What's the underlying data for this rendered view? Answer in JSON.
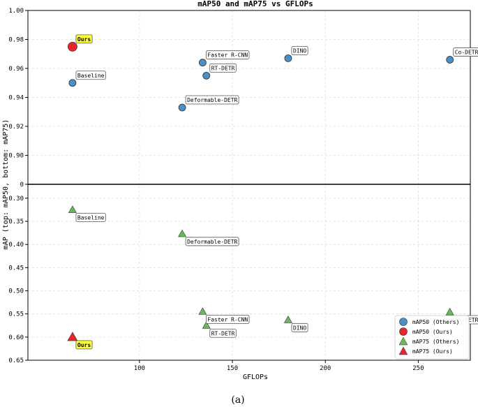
{
  "chart_data": {
    "type": "scatter",
    "title": "mAP50 and mAP75 vs GFLOPs",
    "xlabel": "GFLOPs",
    "ylabel": "mAP (top: mAP50, bottom: mAP75)",
    "caption": "(a)",
    "xlim": [
      40,
      278
    ],
    "x_ticks": [
      "100",
      "150",
      "200",
      "250"
    ],
    "top_panel": {
      "ylim": [
        0.88,
        1.0
      ],
      "y_ticks": [
        "0.90",
        "0.92",
        "0.94",
        "0.96",
        "0.98",
        "1.00"
      ],
      "zero_tick": "0"
    },
    "bottom_panel": {
      "ylim": [
        0.27,
        0.65
      ],
      "inverted": true,
      "y_ticks": [
        "0.30",
        "0.35",
        "0.40",
        "0.45",
        "0.50",
        "0.55",
        "0.60",
        "0.65"
      ]
    },
    "grid": true,
    "legend_position": "lower-right",
    "series": [
      {
        "name": "mAP50 (Others)",
        "marker": "circle",
        "color": "#4a90c8",
        "panel": "top",
        "points": [
          {
            "label": "Baseline",
            "x": 64,
            "y": 0.95
          },
          {
            "label": "Faster R-CNN",
            "x": 134,
            "y": 0.964
          },
          {
            "label": "RT-DETR",
            "x": 136,
            "y": 0.955
          },
          {
            "label": "Deformable-DETR",
            "x": 123,
            "y": 0.933
          },
          {
            "label": "DINO",
            "x": 180,
            "y": 0.967
          },
          {
            "label": "Co-DETR",
            "x": 267,
            "y": 0.966
          }
        ]
      },
      {
        "name": "mAP50 (Ours)",
        "marker": "circle",
        "color": "#e8262a",
        "panel": "top",
        "points": [
          {
            "label": "Ours",
            "x": 64,
            "y": 0.975
          }
        ]
      },
      {
        "name": "mAP75 (Others)",
        "marker": "triangle",
        "color": "#66bb58",
        "panel": "bottom",
        "points": [
          {
            "label": "Baseline",
            "x": 64,
            "y": 0.325
          },
          {
            "label": "Deformable-DETR",
            "x": 123,
            "y": 0.377
          },
          {
            "label": "Faster R-CNN",
            "x": 134,
            "y": 0.545
          },
          {
            "label": "RT-DETR",
            "x": 136,
            "y": 0.575
          },
          {
            "label": "DINO",
            "x": 180,
            "y": 0.563
          },
          {
            "label": "Co-DETR",
            "x": 267,
            "y": 0.546
          }
        ]
      },
      {
        "name": "mAP75 (Ours)",
        "marker": "triangle",
        "color": "#e8262a",
        "panel": "bottom",
        "points": [
          {
            "label": "Ours",
            "x": 64,
            "y": 0.6
          }
        ]
      }
    ]
  }
}
